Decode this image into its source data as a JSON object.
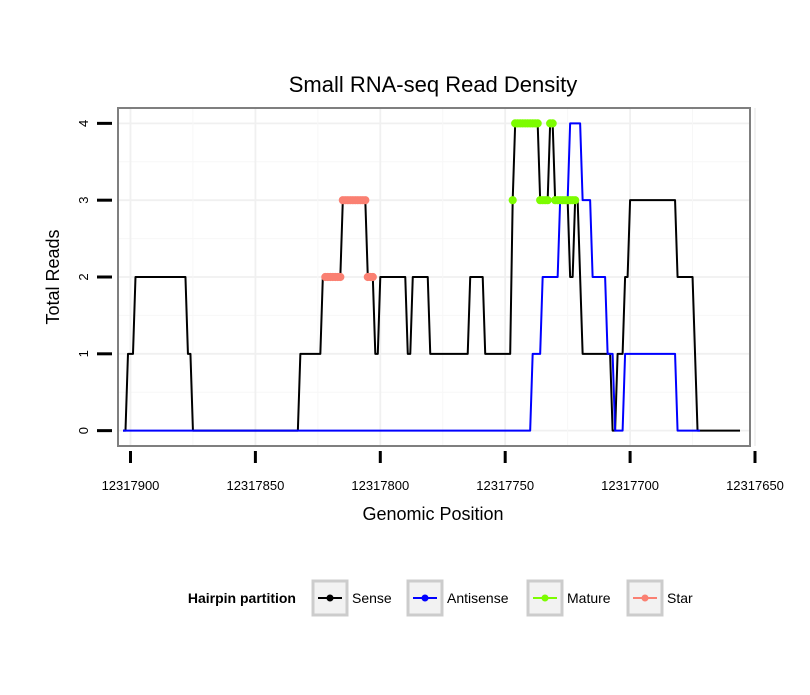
{
  "chart_data": {
    "type": "line",
    "title": "Small RNA-seq Read Density",
    "xlabel": "Genomic Position",
    "ylabel": "Total Reads",
    "x_reversed": true,
    "xlim": [
      12317905,
      12317652
    ],
    "ylim": [
      -0.2,
      4.2
    ],
    "x_ticks": [
      12317900,
      12317850,
      12317800,
      12317750,
      12317700,
      12317650
    ],
    "x_tick_labels": [
      "12317900",
      "12317850",
      "12317800",
      "12317750",
      "12317700",
      "12317650"
    ],
    "y_ticks": [
      0,
      1,
      2,
      3,
      4
    ],
    "y_tick_labels": [
      "0",
      "1",
      "2",
      "3",
      "4"
    ],
    "grid": true,
    "legend": {
      "title": "Hairpin partition",
      "position": "bottom",
      "entries": [
        {
          "label": "Sense",
          "color": "#000000"
        },
        {
          "label": "Antisense",
          "color": "#0000ff"
        },
        {
          "label": "Mature",
          "color": "#7cfc00"
        },
        {
          "label": "Star",
          "color": "#fa8072"
        }
      ]
    },
    "series": [
      {
        "name": "Sense",
        "color": "#000000",
        "points": [
          [
            12317903,
            0
          ],
          [
            12317902,
            0
          ],
          [
            12317901,
            1
          ],
          [
            12317899,
            1
          ],
          [
            12317898,
            2
          ],
          [
            12317878,
            2
          ],
          [
            12317877,
            1
          ],
          [
            12317876,
            1
          ],
          [
            12317875,
            0
          ],
          [
            12317833,
            0
          ],
          [
            12317832,
            1
          ],
          [
            12317824,
            1
          ],
          [
            12317823,
            2
          ],
          [
            12317816,
            2
          ],
          [
            12317815,
            3
          ],
          [
            12317806,
            3
          ],
          [
            12317805,
            2
          ],
          [
            12317803,
            2
          ],
          [
            12317802,
            1
          ],
          [
            12317801,
            1
          ],
          [
            12317800,
            2
          ],
          [
            12317790,
            2
          ],
          [
            12317789,
            1
          ],
          [
            12317788,
            1
          ],
          [
            12317787,
            2
          ],
          [
            12317781,
            2
          ],
          [
            12317780,
            1
          ],
          [
            12317765,
            1
          ],
          [
            12317764,
            2
          ],
          [
            12317759,
            2
          ],
          [
            12317758,
            1
          ],
          [
            12317748,
            1
          ],
          [
            12317747,
            3
          ],
          [
            12317746,
            4
          ],
          [
            12317737,
            4
          ],
          [
            12317736,
            3
          ],
          [
            12317733,
            3
          ],
          [
            12317732,
            4
          ],
          [
            12317731,
            4
          ],
          [
            12317730,
            3
          ],
          [
            12317725,
            3
          ],
          [
            12317724,
            2
          ],
          [
            12317723,
            2
          ],
          [
            12317722,
            3
          ],
          [
            12317721,
            3
          ],
          [
            12317720,
            2
          ],
          [
            12317719,
            1
          ],
          [
            12317708,
            1
          ],
          [
            12317707,
            0
          ],
          [
            12317706,
            0
          ],
          [
            12317705,
            1
          ],
          [
            12317703,
            1
          ],
          [
            12317702,
            2
          ],
          [
            12317701,
            2
          ],
          [
            12317700,
            3
          ],
          [
            12317682,
            3
          ],
          [
            12317681,
            2
          ],
          [
            12317675,
            2
          ],
          [
            12317674,
            1
          ],
          [
            12317673,
            0
          ],
          [
            12317656,
            0
          ]
        ]
      },
      {
        "name": "Antisense",
        "color": "#0000ff",
        "points": [
          [
            12317903,
            0
          ],
          [
            12317749,
            0
          ],
          [
            12317748,
            0
          ],
          [
            12317740,
            0
          ],
          [
            12317739,
            1
          ],
          [
            12317736,
            1
          ],
          [
            12317735,
            2
          ],
          [
            12317729,
            2
          ],
          [
            12317728,
            3
          ],
          [
            12317725,
            3
          ],
          [
            12317724,
            4
          ],
          [
            12317720,
            4
          ],
          [
            12317719,
            3
          ],
          [
            12317716,
            3
          ],
          [
            12317715,
            2
          ],
          [
            12317710,
            2
          ],
          [
            12317709,
            1
          ],
          [
            12317707,
            1
          ],
          [
            12317706,
            0
          ],
          [
            12317703,
            0
          ],
          [
            12317702,
            1
          ],
          [
            12317682,
            1
          ],
          [
            12317681,
            0
          ],
          [
            12317672,
            0
          ]
        ]
      },
      {
        "name": "Mature",
        "color": "#7cfc00",
        "points": [
          [
            12317747,
            3
          ],
          [
            12317746,
            4
          ],
          [
            12317745,
            4
          ],
          [
            12317744,
            4
          ],
          [
            12317743,
            4
          ],
          [
            12317742,
            4
          ],
          [
            12317741,
            4
          ],
          [
            12317740,
            4
          ],
          [
            12317739,
            4
          ],
          [
            12317738,
            4
          ],
          [
            12317737,
            4
          ],
          [
            12317736,
            3
          ],
          [
            12317735,
            3
          ],
          [
            12317734,
            3
          ],
          [
            12317733,
            3
          ],
          [
            12317732,
            4
          ],
          [
            12317731,
            4
          ],
          [
            12317730,
            3
          ],
          [
            12317729,
            3
          ],
          [
            12317728,
            3
          ],
          [
            12317727,
            3
          ],
          [
            12317726,
            3
          ],
          [
            12317725,
            3
          ],
          [
            12317724,
            3
          ],
          [
            12317723,
            3
          ],
          [
            12317722,
            3
          ]
        ]
      },
      {
        "name": "Star",
        "color": "#fa8072",
        "points": [
          [
            12317822,
            2
          ],
          [
            12317821,
            2
          ],
          [
            12317820,
            2
          ],
          [
            12317819,
            2
          ],
          [
            12317818,
            2
          ],
          [
            12317817,
            2
          ],
          [
            12317816,
            2
          ],
          [
            12317815,
            3
          ],
          [
            12317814,
            3
          ],
          [
            12317813,
            3
          ],
          [
            12317812,
            3
          ],
          [
            12317811,
            3
          ],
          [
            12317810,
            3
          ],
          [
            12317809,
            3
          ],
          [
            12317808,
            3
          ],
          [
            12317807,
            3
          ],
          [
            12317806,
            3
          ],
          [
            12317805,
            2
          ],
          [
            12317804,
            2
          ],
          [
            12317803,
            2
          ]
        ]
      }
    ]
  }
}
